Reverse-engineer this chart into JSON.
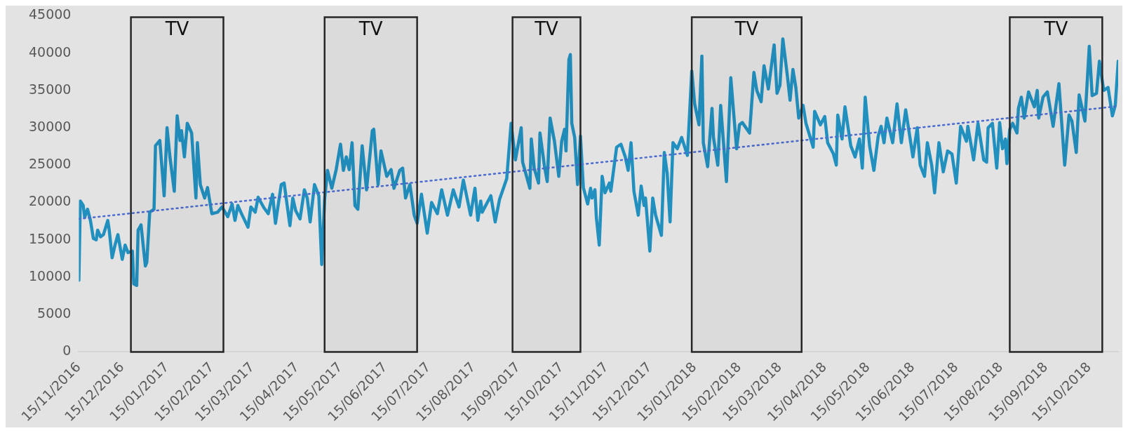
{
  "chart_data": {
    "type": "line",
    "x": [
      "2016-11-15",
      "2016-11-16",
      "2016-11-18",
      "2016-11-19",
      "2016-11-21",
      "2016-11-23",
      "2016-11-25",
      "2016-11-27",
      "2016-11-28",
      "2016-11-30",
      "2016-12-02",
      "2016-12-05",
      "2016-12-06",
      "2016-12-08",
      "2016-12-10",
      "2016-12-12",
      "2016-12-15",
      "2016-12-17",
      "2016-12-19",
      "2016-12-22",
      "2016-12-23",
      "2016-12-25",
      "2016-12-26",
      "2016-12-28",
      "2016-12-31",
      "2017-01-01",
      "2017-01-03",
      "2017-01-06",
      "2017-01-07",
      "2017-01-10",
      "2017-01-13",
      "2017-01-15",
      "2017-01-17",
      "2017-01-20",
      "2017-01-22",
      "2017-01-24",
      "2017-01-25",
      "2017-01-27",
      "2017-01-29",
      "2017-02-01",
      "2017-02-04",
      "2017-02-05",
      "2017-02-07",
      "2017-02-10",
      "2017-02-12",
      "2017-02-15",
      "2017-02-19",
      "2017-02-22",
      "2017-02-26",
      "2017-03-01",
      "2017-03-03",
      "2017-03-05",
      "2017-03-08",
      "2017-03-12",
      "2017-03-14",
      "2017-03-17",
      "2017-03-19",
      "2017-03-23",
      "2017-03-26",
      "2017-03-29",
      "2017-03-31",
      "2017-04-04",
      "2017-04-06",
      "2017-04-10",
      "2017-04-12",
      "2017-04-14",
      "2017-04-17",
      "2017-04-20",
      "2017-04-22",
      "2017-04-24",
      "2017-04-27",
      "2017-04-30",
      "2017-05-02",
      "2017-05-04",
      "2017-05-06",
      "2017-05-09",
      "2017-05-12",
      "2017-05-15",
      "2017-05-17",
      "2017-05-19",
      "2017-05-21",
      "2017-05-23",
      "2017-05-25",
      "2017-05-27",
      "2017-05-30",
      "2017-06-02",
      "2017-06-06",
      "2017-06-07",
      "2017-06-10",
      "2017-06-12",
      "2017-06-16",
      "2017-06-19",
      "2017-06-21",
      "2017-06-25",
      "2017-06-27",
      "2017-06-29",
      "2017-07-02",
      "2017-07-05",
      "2017-07-07",
      "2017-07-10",
      "2017-07-14",
      "2017-07-17",
      "2017-07-21",
      "2017-07-24",
      "2017-07-28",
      "2017-08-01",
      "2017-08-05",
      "2017-08-08",
      "2017-08-13",
      "2017-08-16",
      "2017-08-18",
      "2017-08-20",
      "2017-08-21",
      "2017-08-27",
      "2017-08-30",
      "2017-09-02",
      "2017-09-07",
      "2017-09-10",
      "2017-09-13",
      "2017-09-17",
      "2017-09-18",
      "2017-09-23",
      "2017-09-24",
      "2017-09-26",
      "2017-09-29",
      "2017-09-30",
      "2017-10-03",
      "2017-10-05",
      "2017-10-07",
      "2017-10-10",
      "2017-10-13",
      "2017-10-15",
      "2017-10-17",
      "2017-10-18",
      "2017-10-20",
      "2017-10-21",
      "2017-10-22",
      "2017-10-24",
      "2017-10-26",
      "2017-10-28",
      "2017-10-30",
      "2017-11-02",
      "2017-11-04",
      "2017-11-05",
      "2017-11-07",
      "2017-11-08",
      "2017-11-10",
      "2017-11-12",
      "2017-11-14",
      "2017-11-17",
      "2017-11-18",
      "2017-11-22",
      "2017-11-25",
      "2017-11-28",
      "2017-11-30",
      "2017-12-02",
      "2017-12-04",
      "2017-12-07",
      "2017-12-09",
      "2017-12-11",
      "2017-12-12",
      "2017-12-15",
      "2017-12-17",
      "2017-12-19",
      "2017-12-23",
      "2017-12-25",
      "2017-12-27",
      "2017-12-29",
      "2017-12-31",
      "2018-01-03",
      "2018-01-06",
      "2018-01-10",
      "2018-01-13",
      "2018-01-15",
      "2018-01-18",
      "2018-01-20",
      "2018-01-21",
      "2018-01-24",
      "2018-01-27",
      "2018-01-28",
      "2018-01-31",
      "2018-02-02",
      "2018-02-06",
      "2018-02-09",
      "2018-02-13",
      "2018-02-15",
      "2018-02-17",
      "2018-02-22",
      "2018-02-25",
      "2018-02-27",
      "2018-03-02",
      "2018-03-04",
      "2018-03-07",
      "2018-03-11",
      "2018-03-13",
      "2018-03-15",
      "2018-03-17",
      "2018-03-20",
      "2018-03-22",
      "2018-03-24",
      "2018-03-26",
      "2018-03-28",
      "2018-03-31",
      "2018-04-02",
      "2018-04-07",
      "2018-04-08",
      "2018-04-10",
      "2018-04-12",
      "2018-04-15",
      "2018-04-17",
      "2018-04-21",
      "2018-04-23",
      "2018-04-24",
      "2018-04-27",
      "2018-04-29",
      "2018-05-03",
      "2018-05-06",
      "2018-05-09",
      "2018-05-11",
      "2018-05-13",
      "2018-05-16",
      "2018-05-19",
      "2018-05-22",
      "2018-05-24",
      "2018-05-26",
      "2018-05-28",
      "2018-06-01",
      "2018-06-04",
      "2018-06-07",
      "2018-06-10",
      "2018-06-15",
      "2018-06-18",
      "2018-06-20",
      "2018-06-23",
      "2018-06-25",
      "2018-06-28",
      "2018-06-30",
      "2018-07-03",
      "2018-07-06",
      "2018-07-09",
      "2018-07-12",
      "2018-07-15",
      "2018-07-18",
      "2018-07-22",
      "2018-07-23",
      "2018-07-27",
      "2018-07-30",
      "2018-08-03",
      "2018-08-05",
      "2018-08-06",
      "2018-08-09",
      "2018-08-12",
      "2018-08-14",
      "2018-08-16",
      "2018-08-18",
      "2018-08-19",
      "2018-08-21",
      "2018-08-23",
      "2018-08-26",
      "2018-08-27",
      "2018-08-29",
      "2018-08-31",
      "2018-09-03",
      "2018-09-07",
      "2018-09-09",
      "2018-09-10",
      "2018-09-13",
      "2018-09-16",
      "2018-09-20",
      "2018-09-24",
      "2018-09-28",
      "2018-10-01",
      "2018-10-03",
      "2018-10-06",
      "2018-10-08",
      "2018-10-12",
      "2018-10-15",
      "2018-10-17",
      "2018-10-20",
      "2018-10-22",
      "2018-10-25",
      "2018-10-28",
      "2018-10-31",
      "2018-11-02",
      "2018-11-04"
    ],
    "series": [
      {
        "color": "#2190bf",
        "line_style": "solid",
        "values": [
          9600,
          20200,
          19600,
          18000,
          19100,
          17600,
          15200,
          15000,
          16300,
          15400,
          15700,
          17600,
          16300,
          12600,
          14300,
          15700,
          12400,
          14300,
          13300,
          13500,
          9100,
          8900,
          16300,
          17000,
          11500,
          12000,
          18700,
          19100,
          27600,
          28300,
          20900,
          30000,
          26100,
          21500,
          31600,
          28300,
          29600,
          26100,
          30600,
          29300,
          20600,
          28000,
          22400,
          20600,
          22000,
          18500,
          18700,
          19400,
          18100,
          19800,
          17600,
          19600,
          18300,
          16700,
          19400,
          18700,
          20700,
          19300,
          18500,
          21100,
          17200,
          22400,
          22600,
          16900,
          20600,
          18900,
          17800,
          21700,
          20600,
          17400,
          22400,
          20900,
          11700,
          20400,
          24300,
          21900,
          24400,
          27800,
          24300,
          26100,
          24400,
          28000,
          19600,
          19100,
          27600,
          21700,
          29600,
          29800,
          22400,
          26900,
          23500,
          24400,
          21900,
          24300,
          24600,
          20600,
          22400,
          18300,
          17200,
          21100,
          15900,
          20000,
          18500,
          21700,
          18300,
          21700,
          19400,
          23000,
          18300,
          21900,
          17600,
          20200,
          18700,
          20900,
          17400,
          20400,
          23200,
          30600,
          25700,
          30000,
          25400,
          21900,
          28500,
          24600,
          22600,
          29300,
          25000,
          22800,
          31300,
          28200,
          23500,
          28200,
          29800,
          26900,
          39100,
          39800,
          30600,
          28700,
          22400,
          28900,
          22000,
          19800,
          21900,
          20600,
          21700,
          18000,
          14300,
          23500,
          21300,
          22600,
          21500,
          27400,
          27800,
          26100,
          24300,
          28000,
          21500,
          18300,
          22200,
          19600,
          20600,
          13500,
          20600,
          18300,
          15600,
          26700,
          23900,
          17400,
          28000,
          27200,
          28700,
          26300,
          37600,
          33200,
          30400,
          39600,
          28000,
          24800,
          32600,
          28700,
          25000,
          33000,
          22800,
          36700,
          27200,
          30400,
          30700,
          29300,
          37400,
          35000,
          33500,
          38300,
          35200,
          41100,
          34600,
          35700,
          41900,
          37200,
          33700,
          37800,
          35400,
          31300,
          33000,
          30600,
          27400,
          32200,
          31300,
          30400,
          31500,
          28000,
          26500,
          25000,
          31700,
          28500,
          32800,
          27600,
          26100,
          28500,
          24600,
          34100,
          27600,
          24300,
          28900,
          30200,
          28000,
          31300,
          28000,
          33200,
          28000,
          32400,
          26100,
          30000,
          25000,
          23500,
          28000,
          25000,
          21300,
          28000,
          24100,
          26900,
          26500,
          22600,
          30200,
          28200,
          30200,
          25700,
          30600,
          25700,
          25400,
          30000,
          30600,
          24600,
          30700,
          27200,
          28500,
          25200,
          29800,
          30600,
          29300,
          32600,
          34100,
          31300,
          34800,
          32800,
          35000,
          31300,
          34100,
          34800,
          30200,
          35900,
          25000,
          31700,
          30900,
          26700,
          34400,
          30900,
          40900,
          34300,
          34600,
          38900,
          35000,
          35400,
          31600,
          33000,
          38900
        ]
      },
      {
        "type": "line",
        "color": "#4a6bd0",
        "line_style": "dotted",
        "x": [
          "2016-11-15",
          "2018-11-04"
        ],
        "values": [
          17800,
          32900
        ]
      }
    ],
    "bands": [
      {
        "axis": "x",
        "from": "2016-12-21",
        "to": "2017-02-23",
        "label": "TV",
        "color": "#262626"
      },
      {
        "axis": "x",
        "from": "2017-05-04",
        "to": "2017-07-07",
        "label": "TV",
        "color": "#262626"
      },
      {
        "axis": "x",
        "from": "2017-09-11",
        "to": "2017-10-28",
        "label": "TV",
        "color": "#262626"
      },
      {
        "axis": "x",
        "from": "2018-01-13",
        "to": "2018-03-30",
        "label": "TV",
        "color": "#262626"
      },
      {
        "axis": "x",
        "from": "2018-08-21",
        "to": "2018-10-24",
        "label": "TV",
        "color": "#262626"
      }
    ],
    "xlim": [
      "2016-11-15",
      "2018-11-04"
    ],
    "xticks": [
      {
        "value": "2016-11-15",
        "label": "15/11/2016"
      },
      {
        "value": "2016-12-15",
        "label": "15/12/2016"
      },
      {
        "value": "2017-01-15",
        "label": "15/01/2017"
      },
      {
        "value": "2017-02-15",
        "label": "15/02/2017"
      },
      {
        "value": "2017-03-15",
        "label": "15/03/2017"
      },
      {
        "value": "2017-04-15",
        "label": "15/04/2017"
      },
      {
        "value": "2017-05-15",
        "label": "15/05/2017"
      },
      {
        "value": "2017-06-15",
        "label": "15/06/2017"
      },
      {
        "value": "2017-07-15",
        "label": "15/07/2017"
      },
      {
        "value": "2017-08-15",
        "label": "15/08/2017"
      },
      {
        "value": "2017-09-15",
        "label": "15/09/2017"
      },
      {
        "value": "2017-10-15",
        "label": "15/10/2017"
      },
      {
        "value": "2017-11-15",
        "label": "15/11/2017"
      },
      {
        "value": "2017-12-15",
        "label": "15/12/2017"
      },
      {
        "value": "2018-01-15",
        "label": "15/01/2018"
      },
      {
        "value": "2018-02-15",
        "label": "15/02/2018"
      },
      {
        "value": "2018-03-15",
        "label": "15/03/2018"
      },
      {
        "value": "2018-04-15",
        "label": "15/04/2018"
      },
      {
        "value": "2018-05-15",
        "label": "15/05/2018"
      },
      {
        "value": "2018-06-15",
        "label": "15/06/2018"
      },
      {
        "value": "2018-07-15",
        "label": "15/07/2018"
      },
      {
        "value": "2018-08-15",
        "label": "15/08/2018"
      },
      {
        "value": "2018-09-15",
        "label": "15/09/2018"
      },
      {
        "value": "2018-10-15",
        "label": "15/10/2018"
      }
    ],
    "ylim": [
      0,
      45000
    ],
    "yticks": [
      0,
      5000,
      10000,
      15000,
      20000,
      25000,
      30000,
      35000,
      40000,
      45000
    ],
    "marker": "none"
  }
}
